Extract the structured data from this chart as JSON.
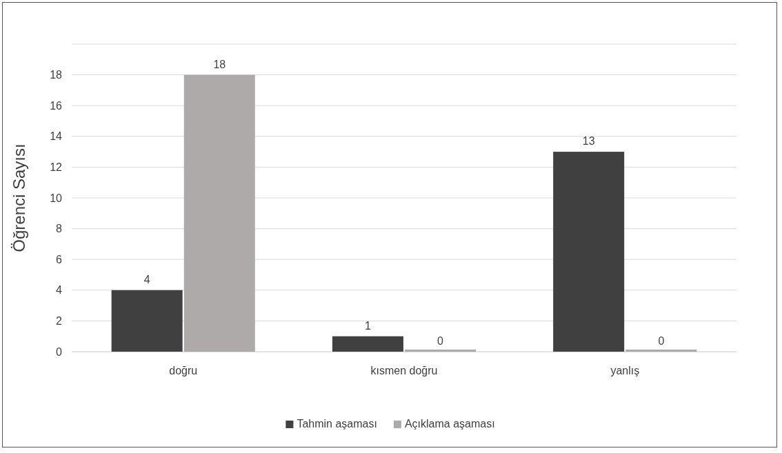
{
  "chart_data": {
    "type": "bar",
    "ylabel": "Öğrenci Sayısı",
    "categories": [
      "doğru",
      "kısmen doğru",
      "yanlış"
    ],
    "series": [
      {
        "name": "Tahmin aşaması",
        "color": "#404040",
        "values": [
          4,
          1,
          13
        ]
      },
      {
        "name": "Açıklama aşaması",
        "color": "#aeaaaa",
        "values": [
          18,
          0,
          0
        ]
      }
    ],
    "ylim": [
      0,
      20
    ],
    "yticks": [
      0,
      2,
      4,
      6,
      8,
      10,
      12,
      14,
      16,
      18,
      {
        "value": 20,
        "label": null
      }
    ],
    "grid": "y",
    "data_labels": true,
    "legend": "bottom"
  }
}
